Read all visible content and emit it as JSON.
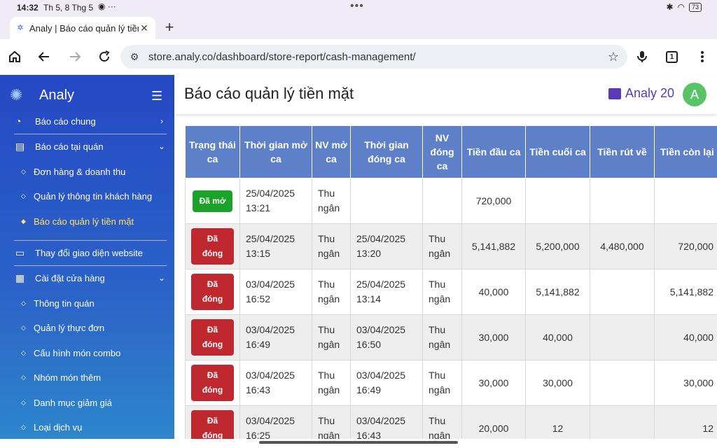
{
  "status": {
    "time": "14:32",
    "date": "Th 5, 8 Thg 5",
    "battery": "73",
    "dots": "•••"
  },
  "browser": {
    "tab_title": "Analy | Báo cáo quản lý tiền",
    "url": "store.analy.co/dashboard/store-report/cash-management/",
    "tab_count": "1"
  },
  "sidebar": {
    "brand": "Analy",
    "items": [
      {
        "label": "Báo cáo chung",
        "icon": "chart-pie-icon"
      },
      {
        "label": "Báo cáo tại quán",
        "icon": "clipboard-icon"
      },
      {
        "label": "Đơn hàng & doanh thu"
      },
      {
        "label": "Quản lý thông tin khách hàng"
      },
      {
        "label": "Báo cáo quản lý tiền mặt"
      },
      {
        "label": "Thay đổi giao diện website",
        "icon": "layout-icon"
      },
      {
        "label": "Cài đặt cửa hàng",
        "icon": "store-icon"
      },
      {
        "label": "Thông tin quán"
      },
      {
        "label": "Quản lý thực đơn"
      },
      {
        "label": "Cấu hình món combo"
      },
      {
        "label": "Nhóm món thêm"
      },
      {
        "label": "Danh mục giảm giá"
      },
      {
        "label": "Loại dịch vụ"
      }
    ]
  },
  "header": {
    "title": "Báo cáo quản lý tiền mặt",
    "store_name": "Analy 20",
    "avatar_letter": "A"
  },
  "table": {
    "headers": [
      "Trạng thái ca",
      "Thời gian mở ca",
      "NV mở ca",
      "Thời gian đóng ca",
      "NV đóng ca",
      "Tiền đầu ca",
      "Tiền cuối ca",
      "Tiền rút về",
      "Tiền còn lại"
    ],
    "rows": [
      {
        "status": "Đã mở",
        "open_date": "25/04/2025",
        "open_time": "13:21",
        "open_nv1": "Thu",
        "open_nv2": "ngân",
        "close_date": "",
        "close_time": "",
        "close_nv1": "",
        "close_nv2": "",
        "start": "720,000",
        "end": "",
        "withdraw": "",
        "remain": ""
      },
      {
        "status": "Đã đóng",
        "open_date": "25/04/2025",
        "open_time": "13:15",
        "open_nv1": "Thu",
        "open_nv2": "ngân",
        "close_date": "25/04/2025",
        "close_time": "13:20",
        "close_nv1": "Thu",
        "close_nv2": "ngân",
        "start": "5,141,882",
        "end": "5,200,000",
        "withdraw": "4,480,000",
        "remain": "720,000"
      },
      {
        "status": "Đã đóng",
        "open_date": "03/04/2025",
        "open_time": "16:52",
        "open_nv1": "Thu",
        "open_nv2": "ngân",
        "close_date": "25/04/2025",
        "close_time": "13:14",
        "close_nv1": "Thu",
        "close_nv2": "ngân",
        "start": "40,000",
        "end": "5,141,882",
        "withdraw": "",
        "remain": "5,141,882"
      },
      {
        "status": "Đã đóng",
        "open_date": "03/04/2025",
        "open_time": "16:49",
        "open_nv1": "Thu",
        "open_nv2": "ngân",
        "close_date": "03/04/2025",
        "close_time": "16:50",
        "close_nv1": "Thu",
        "close_nv2": "ngân",
        "start": "30,000",
        "end": "40,000",
        "withdraw": "",
        "remain": "40,000"
      },
      {
        "status": "Đã đóng",
        "open_date": "03/04/2025",
        "open_time": "16:43",
        "open_nv1": "Thu",
        "open_nv2": "ngân",
        "close_date": "03/04/2025",
        "close_time": "16:49",
        "close_nv1": "Thu",
        "close_nv2": "ngân",
        "start": "30,000",
        "end": "30,000",
        "withdraw": "",
        "remain": "30,000"
      },
      {
        "status": "Đã đóng",
        "open_date": "03/04/2025",
        "open_time": "16:25",
        "open_nv1": "Thu",
        "open_nv2": "ngân",
        "close_date": "03/04/2025",
        "close_time": "16:43",
        "close_nv1": "Thu",
        "close_nv2": "ngân",
        "start": "20,000",
        "end": "12",
        "withdraw": "",
        "remain": "12"
      }
    ]
  },
  "colors": {
    "sidebar_top": "#2548c4",
    "sidebar_bottom": "#2d86cc",
    "table_header": "#5d80c8",
    "badge_open": "#1aa328",
    "badge_closed": "#c0282f",
    "active_menu": "#ffe45c",
    "brand_purple": "#5a3ab8"
  }
}
